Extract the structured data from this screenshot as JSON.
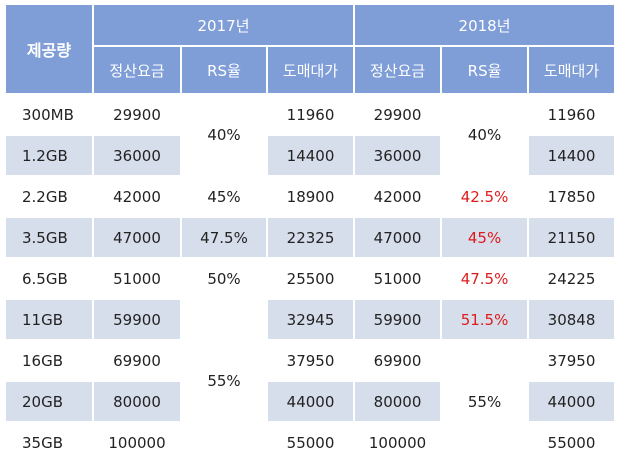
{
  "header": {
    "corner": "제공량",
    "years": [
      "2017년",
      "2018년"
    ],
    "subs": [
      "정산요금",
      "RS율",
      "도매대가",
      "정산요금",
      "RS율",
      "도매대가"
    ]
  },
  "rows": [
    {
      "cap": "300MB",
      "s17": "29900",
      "w17": "11960",
      "s18": "29900",
      "w18": "11960"
    },
    {
      "cap": "1.2GB",
      "s17": "36000",
      "w17": "14400",
      "s18": "36000",
      "w18": "14400"
    },
    {
      "cap": "2.2GB",
      "s17": "42000",
      "w17": "18900",
      "s18": "42000",
      "w18": "17850"
    },
    {
      "cap": "3.5GB",
      "s17": "47000",
      "w17": "22325",
      "s18": "47000",
      "w18": "21150"
    },
    {
      "cap": "6.5GB",
      "s17": "51000",
      "w17": "25500",
      "s18": "51000",
      "w18": "24225"
    },
    {
      "cap": "11GB",
      "s17": "59900",
      "w17": "32945",
      "s18": "59900",
      "w18": "30848"
    },
    {
      "cap": "16GB",
      "s17": "69900",
      "w17": "37950",
      "s18": "69900",
      "w18": "37950"
    },
    {
      "cap": "20GB",
      "s17": "80000",
      "w17": "44000",
      "s18": "80000",
      "w18": "44000"
    },
    {
      "cap": "35GB",
      "s17": "100000",
      "w17": "55000",
      "s18": "100000",
      "w18": "55000"
    }
  ],
  "rs2017": [
    "40%",
    "45%",
    "47.5%",
    "50%",
    "55%"
  ],
  "rs2018": [
    "40%",
    "42.5%",
    "45%",
    "47.5%",
    "51.5%",
    "55%"
  ],
  "colors": {
    "header": "#7f9dd6",
    "band": "#d6deeb",
    "highlight": "#e01b1b"
  }
}
